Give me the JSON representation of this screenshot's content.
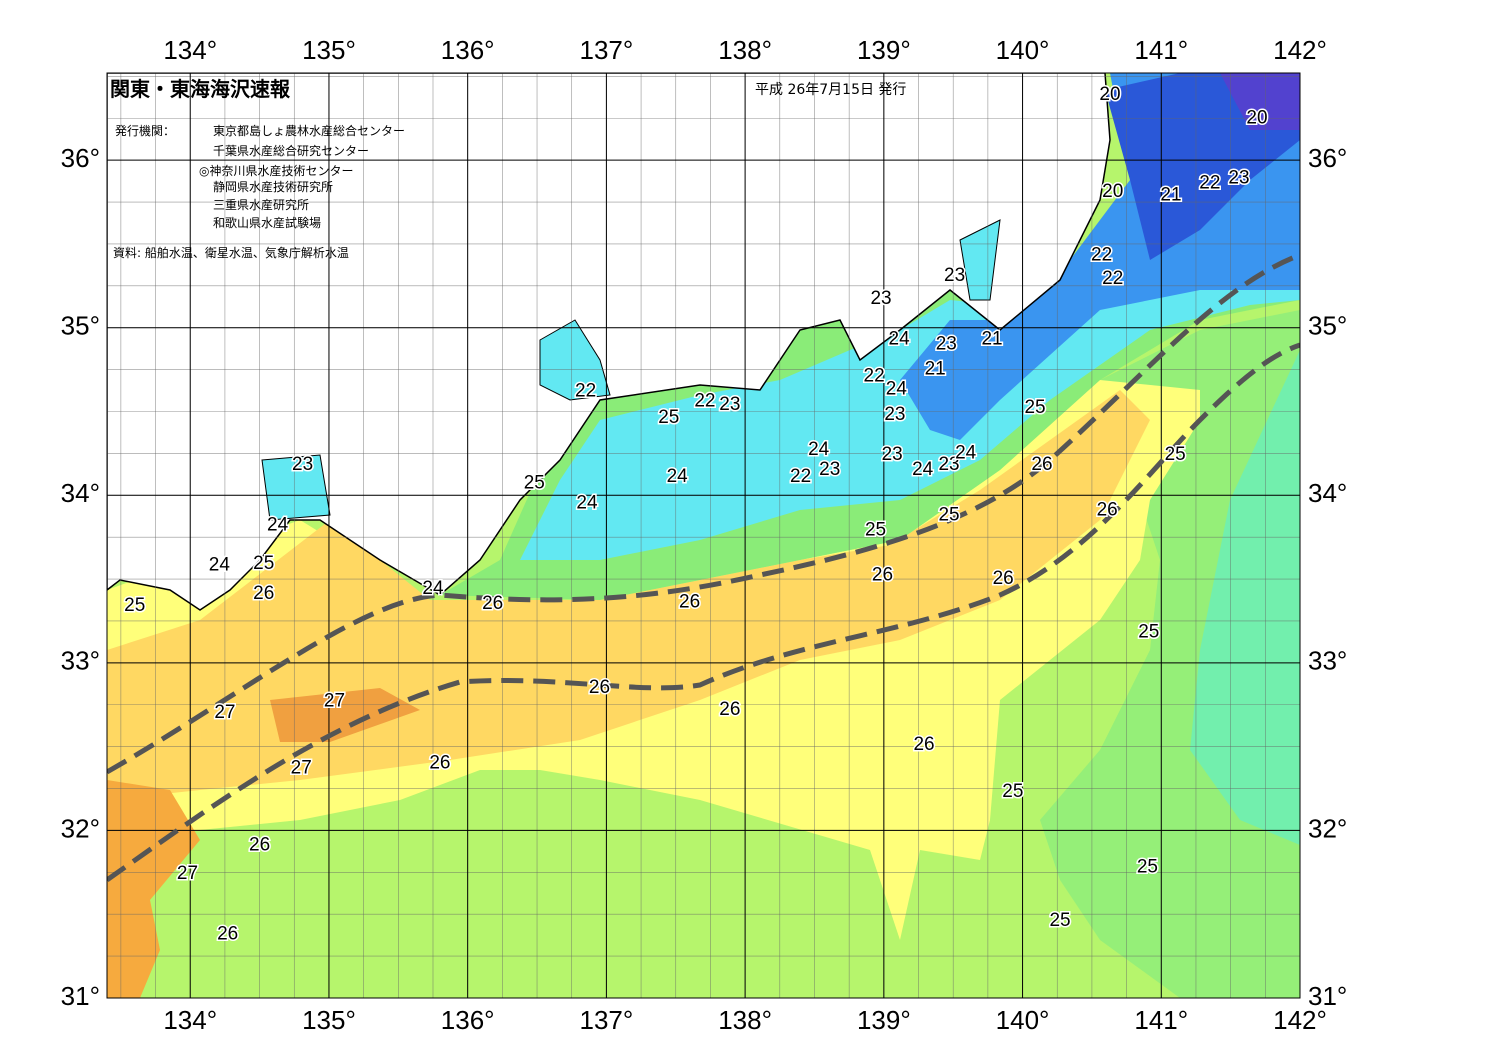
{
  "header": {
    "title": "関東・東海海沢速報",
    "date": "平成 26年7月15日 発行",
    "issuer_label": "発行機関：",
    "issuers": [
      "東京都島しょ農林水産総合センター",
      "千葉県水産総合研究センター",
      "◎神奈川県水産技術センター",
      "静岡県水産技術研究所",
      "三重県水産研究所",
      "和歌山県水産試験場"
    ],
    "source": "資料: 船舶水温、衛星水温、気象庁解析水温"
  },
  "chart_data": {
    "type": "map",
    "xlim": [
      133.4,
      142
    ],
    "ylim": [
      31,
      36.52
    ],
    "grid_step": 0.25,
    "xticks": [
      {
        "value": 134,
        "label": "134°"
      },
      {
        "value": 135,
        "label": "135°"
      },
      {
        "value": 136,
        "label": "136°"
      },
      {
        "value": 137,
        "label": "137°"
      },
      {
        "value": 138,
        "label": "138°"
      },
      {
        "value": 139,
        "label": "139°"
      },
      {
        "value": 140,
        "label": "140°"
      },
      {
        "value": 141,
        "label": "141°"
      },
      {
        "value": 142,
        "label": "142°"
      }
    ],
    "yticks": [
      {
        "value": 31,
        "label": "31°"
      },
      {
        "value": 32,
        "label": "32°"
      },
      {
        "value": 33,
        "label": "33°"
      },
      {
        "value": 34,
        "label": "34°"
      },
      {
        "value": 35,
        "label": "35°"
      },
      {
        "value": 36,
        "label": "36°"
      }
    ],
    "contour_labels": [
      {
        "value": 20,
        "lon": 140.63,
        "lat": 36.39
      },
      {
        "value": 20,
        "lon": 141.69,
        "lat": 36.25
      },
      {
        "value": 20,
        "lon": 140.65,
        "lat": 35.81
      },
      {
        "value": 21,
        "lon": 141.07,
        "lat": 35.79
      },
      {
        "value": 22,
        "lon": 141.35,
        "lat": 35.86
      },
      {
        "value": 23,
        "lon": 141.56,
        "lat": 35.89
      },
      {
        "value": 22,
        "lon": 140.57,
        "lat": 35.43
      },
      {
        "value": 22,
        "lon": 140.65,
        "lat": 35.29
      },
      {
        "value": 23,
        "lon": 139.51,
        "lat": 35.31
      },
      {
        "value": 23,
        "lon": 138.98,
        "lat": 35.17
      },
      {
        "value": 24,
        "lon": 139.11,
        "lat": 34.93
      },
      {
        "value": 23,
        "lon": 139.45,
        "lat": 34.9
      },
      {
        "value": 21,
        "lon": 139.78,
        "lat": 34.93
      },
      {
        "value": 21,
        "lon": 139.37,
        "lat": 34.75
      },
      {
        "value": 22,
        "lon": 138.93,
        "lat": 34.71
      },
      {
        "value": 24,
        "lon": 139.09,
        "lat": 34.63
      },
      {
        "value": 22,
        "lon": 136.85,
        "lat": 34.62
      },
      {
        "value": 22,
        "lon": 137.71,
        "lat": 34.56
      },
      {
        "value": 23,
        "lon": 137.89,
        "lat": 34.54
      },
      {
        "value": 25,
        "lon": 137.45,
        "lat": 34.46
      },
      {
        "value": 23,
        "lon": 139.08,
        "lat": 34.48
      },
      {
        "value": 25,
        "lon": 140.09,
        "lat": 34.52
      },
      {
        "value": 23,
        "lon": 134.81,
        "lat": 34.18
      },
      {
        "value": 24,
        "lon": 138.53,
        "lat": 34.27
      },
      {
        "value": 22,
        "lon": 138.4,
        "lat": 34.11
      },
      {
        "value": 23,
        "lon": 138.61,
        "lat": 34.15
      },
      {
        "value": 23,
        "lon": 139.06,
        "lat": 34.24
      },
      {
        "value": 24,
        "lon": 139.28,
        "lat": 34.15
      },
      {
        "value": 23,
        "lon": 139.47,
        "lat": 34.18
      },
      {
        "value": 24,
        "lon": 139.59,
        "lat": 34.25
      },
      {
        "value": 26,
        "lon": 140.14,
        "lat": 34.18
      },
      {
        "value": 25,
        "lon": 141.1,
        "lat": 34.24
      },
      {
        "value": 24,
        "lon": 137.51,
        "lat": 34.11
      },
      {
        "value": 25,
        "lon": 136.48,
        "lat": 34.07
      },
      {
        "value": 24,
        "lon": 136.86,
        "lat": 33.95
      },
      {
        "value": 25,
        "lon": 139.47,
        "lat": 33.88
      },
      {
        "value": 26,
        "lon": 140.61,
        "lat": 33.91
      },
      {
        "value": 24,
        "lon": 134.63,
        "lat": 33.82
      },
      {
        "value": 25,
        "lon": 138.94,
        "lat": 33.79
      },
      {
        "value": 24,
        "lon": 134.21,
        "lat": 33.58
      },
      {
        "value": 25,
        "lon": 134.53,
        "lat": 33.59
      },
      {
        "value": 26,
        "lon": 134.53,
        "lat": 33.41
      },
      {
        "value": 26,
        "lon": 138.99,
        "lat": 33.52
      },
      {
        "value": 26,
        "lon": 139.86,
        "lat": 33.5
      },
      {
        "value": 24,
        "lon": 135.75,
        "lat": 33.44
      },
      {
        "value": 26,
        "lon": 136.18,
        "lat": 33.35
      },
      {
        "value": 26,
        "lon": 137.6,
        "lat": 33.36
      },
      {
        "value": 25,
        "lon": 133.6,
        "lat": 33.34
      },
      {
        "value": 25,
        "lon": 140.91,
        "lat": 33.18
      },
      {
        "value": 26,
        "lon": 136.95,
        "lat": 32.85
      },
      {
        "value": 27,
        "lon": 135.04,
        "lat": 32.77
      },
      {
        "value": 27,
        "lon": 134.25,
        "lat": 32.7
      },
      {
        "value": 26,
        "lon": 137.89,
        "lat": 32.72
      },
      {
        "value": 26,
        "lon": 139.29,
        "lat": 32.51
      },
      {
        "value": 27,
        "lon": 134.8,
        "lat": 32.37
      },
      {
        "value": 26,
        "lon": 135.8,
        "lat": 32.4
      },
      {
        "value": 25,
        "lon": 139.93,
        "lat": 32.23
      },
      {
        "value": 26,
        "lon": 134.5,
        "lat": 31.91
      },
      {
        "value": 27,
        "lon": 133.98,
        "lat": 31.74
      },
      {
        "value": 25,
        "lon": 140.9,
        "lat": 31.78
      },
      {
        "value": 25,
        "lon": 140.27,
        "lat": 31.46
      },
      {
        "value": 26,
        "lon": 134.27,
        "lat": 31.38
      }
    ]
  }
}
